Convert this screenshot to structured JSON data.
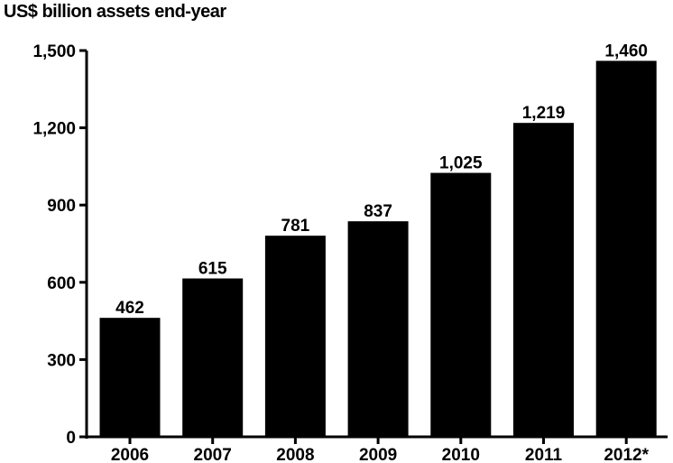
{
  "chart_data": {
    "type": "bar",
    "ylabel": "US$ billion assets end-year",
    "categories": [
      "2006",
      "2007",
      "2008",
      "2009",
      "2010",
      "2011",
      "2012*"
    ],
    "values": [
      462,
      615,
      781,
      837,
      1025,
      1219,
      1460
    ],
    "data_labels": [
      "462",
      "615",
      "781",
      "837",
      "1,025",
      "1,219",
      "1,460"
    ],
    "yticks": [
      0,
      300,
      600,
      900,
      1200,
      1500
    ],
    "ytick_labels": [
      "0",
      "300",
      "600",
      "900",
      "1,200",
      "1,500"
    ],
    "ylim": [
      0,
      1500
    ],
    "bar_color": "#000000",
    "grid": false,
    "legend": "none"
  }
}
